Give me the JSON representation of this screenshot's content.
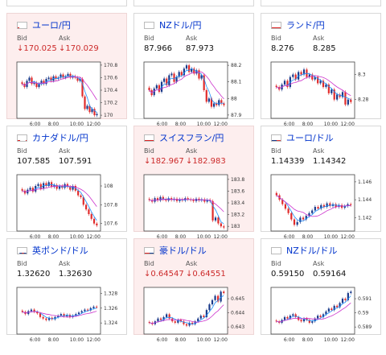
{
  "cards": [
    {
      "id": "eurjpy",
      "flag": "eu",
      "title": "ユーロ/円",
      "bid_label": "Bid",
      "ask_label": "Ask",
      "bid": "170.025",
      "ask": "170.029",
      "bid_down": true,
      "ask_down": true,
      "down": true,
      "chart_data": {
        "type": "candlestick",
        "x_ticks": [
          "6:00",
          "8:00",
          "10:00",
          "12:00"
        ],
        "y_ticks": [
          "170.8",
          "170.6",
          "170.4",
          "170.2",
          "170"
        ],
        "ylim": [
          169.95,
          170.85
        ],
        "close": [
          170.5,
          170.45,
          170.55,
          170.6,
          170.5,
          170.52,
          170.45,
          170.5,
          170.55,
          170.5,
          170.58,
          170.6,
          170.55,
          170.62,
          170.58,
          170.6,
          170.65,
          170.6,
          170.62,
          170.66,
          170.6,
          170.62,
          170.6,
          170.55,
          170.58,
          170.3,
          170.1,
          170.15,
          170.05,
          170.1,
          170.0,
          170.02
        ]
      }
    },
    {
      "id": "nzdjpy",
      "flag": "nz",
      "title": "NZドル/円",
      "bid_label": "Bid",
      "ask_label": "Ask",
      "bid": "87.966",
      "ask": "87.973",
      "bid_down": false,
      "ask_down": false,
      "down": false,
      "chart_data": {
        "type": "candlestick",
        "x_ticks": [
          "6:00",
          "8:00",
          "10:00",
          "12:00"
        ],
        "y_ticks": [
          "88.2",
          "88.1",
          "88",
          "87.9"
        ],
        "ylim": [
          87.88,
          88.22
        ],
        "close": [
          88.05,
          88.02,
          88.06,
          88.08,
          88.04,
          88.1,
          88.12,
          88.08,
          88.14,
          88.15,
          88.1,
          88.13,
          88.16,
          88.14,
          88.18,
          88.2,
          88.16,
          88.18,
          88.15,
          88.17,
          88.12,
          88.14,
          88.05,
          87.98,
          88.0,
          87.95,
          87.97,
          87.96,
          87.99,
          87.97,
          87.96
        ]
      }
    },
    {
      "id": "zarjpy",
      "flag": "za",
      "title": "ランド/円",
      "bid_label": "Bid",
      "ask_label": "Ask",
      "bid": "8.276",
      "ask": "8.285",
      "bid_down": false,
      "ask_down": false,
      "down": false,
      "chart_data": {
        "type": "candlestick",
        "x_ticks": [
          "6:00",
          "8:00",
          "10:00",
          "12:00"
        ],
        "y_ticks": [
          "8.3",
          "8.28"
        ],
        "ylim": [
          8.265,
          8.31
        ],
        "close": [
          8.29,
          8.288,
          8.292,
          8.295,
          8.29,
          8.298,
          8.3,
          8.296,
          8.302,
          8.3,
          8.304,
          8.298,
          8.3,
          8.296,
          8.298,
          8.293,
          8.295,
          8.29,
          8.292,
          8.285,
          8.288,
          8.28,
          8.284,
          8.282,
          8.286,
          8.276,
          8.28,
          8.278
        ]
      }
    },
    {
      "id": "cadjpy",
      "flag": "ca",
      "title": "カナダドル/円",
      "bid_label": "Bid",
      "ask_label": "Ask",
      "bid": "107.585",
      "ask": "107.591",
      "bid_down": false,
      "ask_down": false,
      "down": false,
      "chart_data": {
        "type": "candlestick",
        "x_ticks": [
          "6:00",
          "8:00",
          "10:00",
          "12:00"
        ],
        "y_ticks": [
          "108",
          "107.8",
          "107.6"
        ],
        "ylim": [
          107.52,
          108.12
        ],
        "close": [
          107.95,
          107.92,
          107.96,
          107.98,
          107.94,
          108.0,
          108.02,
          107.97,
          108.03,
          108.0,
          108.04,
          107.99,
          108.01,
          107.97,
          108.0,
          107.98,
          108.02,
          107.99,
          107.96,
          108.0,
          107.95,
          107.9,
          107.88,
          107.8,
          107.75,
          107.7,
          107.65,
          107.6,
          107.58
        ]
      }
    },
    {
      "id": "chfjpy",
      "flag": "ch",
      "title": "スイスフラン/円",
      "bid_label": "Bid",
      "ask_label": "Ask",
      "bid": "182.967",
      "ask": "182.983",
      "bid_down": true,
      "ask_down": true,
      "down": true,
      "chart_data": {
        "type": "candlestick",
        "x_ticks": [
          "6:00",
          "8:00",
          "10:00",
          "12:00"
        ],
        "y_ticks": [
          "183.8",
          "183.6",
          "183.4",
          "183.2",
          "183"
        ],
        "ylim": [
          182.92,
          183.88
        ],
        "close": [
          183.45,
          183.42,
          183.48,
          183.44,
          183.5,
          183.46,
          183.44,
          183.48,
          183.45,
          183.47,
          183.43,
          183.46,
          183.44,
          183.48,
          183.46,
          183.45,
          183.43,
          183.47,
          183.44,
          183.46,
          183.42,
          183.45,
          183.43,
          183.1,
          183.15,
          183.05,
          183.0,
          182.98
        ]
      }
    },
    {
      "id": "eurusd",
      "flag": "us",
      "title": "ユーロ/ドル",
      "bid_label": "Bid",
      "ask_label": "Ask",
      "bid": "1.14339",
      "ask": "1.14342",
      "bid_down": false,
      "ask_down": false,
      "down": false,
      "chart_data": {
        "type": "candlestick",
        "x_ticks": [
          "6:00",
          "8:00",
          "10:00",
          "12:00"
        ],
        "y_ticks": [
          "1.146",
          "1.144",
          "1.142"
        ],
        "ylim": [
          1.1405,
          1.1468
        ],
        "close": [
          1.1445,
          1.144,
          1.1435,
          1.143,
          1.1425,
          1.1418,
          1.1412,
          1.1415,
          1.142,
          1.1418,
          1.1422,
          1.1425,
          1.1428,
          1.1432,
          1.143,
          1.1434,
          1.1432,
          1.1436,
          1.1433,
          1.1435,
          1.1432,
          1.1434,
          1.1431,
          1.1433,
          1.1435,
          1.1434
        ]
      }
    },
    {
      "id": "gbpusd",
      "flag": "gb",
      "title": "英ポンド/ドル",
      "bid_label": "Bid",
      "ask_label": "Ask",
      "bid": "1.32620",
      "ask": "1.32630",
      "bid_down": false,
      "ask_down": false,
      "down": false,
      "chart_data": {
        "type": "candlestick",
        "x_ticks": [
          "6:00",
          "8:00",
          "10:00",
          "12:00"
        ],
        "y_ticks": [
          "1.328",
          "1.326",
          "1.324"
        ],
        "ylim": [
          1.3225,
          1.3288
        ],
        "close": [
          1.3255,
          1.3252,
          1.3256,
          1.3258,
          1.3255,
          1.3253,
          1.3248,
          1.3246,
          1.3244,
          1.3247,
          1.3245,
          1.3248,
          1.325,
          1.3252,
          1.3249,
          1.3251,
          1.3248,
          1.325,
          1.3252,
          1.3254,
          1.3256,
          1.3258,
          1.3257,
          1.326,
          1.3262,
          1.3261
        ]
      }
    },
    {
      "id": "audusd",
      "flag": "au",
      "title": "豪ドル/ドル",
      "bid_label": "Bid",
      "ask_label": "Ask",
      "bid": "0.64547",
      "ask": "0.64551",
      "bid_down": true,
      "ask_down": true,
      "down": true,
      "chart_data": {
        "type": "candlestick",
        "x_ticks": [
          "6:00",
          "8:00",
          "10:00",
          "12:00"
        ],
        "y_ticks": [
          "0.645",
          "0.644",
          "0.643"
        ],
        "ylim": [
          0.6425,
          0.6458
        ],
        "close": [
          0.6433,
          0.6432,
          0.6434,
          0.6436,
          0.6435,
          0.6437,
          0.6439,
          0.6436,
          0.6434,
          0.6433,
          0.6435,
          0.6434,
          0.6432,
          0.6431,
          0.6433,
          0.6432,
          0.6434,
          0.6436,
          0.6438,
          0.6437,
          0.6442,
          0.6446,
          0.6449,
          0.6452,
          0.6448,
          0.6455,
          0.6454
        ]
      }
    },
    {
      "id": "nzdusd",
      "flag": "nz",
      "title": "NZドル/ドル",
      "bid_label": "Bid",
      "ask_label": "Ask",
      "bid": "0.59150",
      "ask": "0.59164",
      "bid_down": false,
      "ask_down": false,
      "down": false,
      "chart_data": {
        "type": "candlestick",
        "x_ticks": [
          "6:00",
          "8:00",
          "10:00",
          "12:00"
        ],
        "y_ticks": [
          "0.591",
          "0.59",
          "0.589"
        ],
        "ylim": [
          0.5885,
          0.5918
        ],
        "close": [
          0.5894,
          0.5893,
          0.5895,
          0.5897,
          0.5896,
          0.5898,
          0.5899,
          0.5897,
          0.5895,
          0.5894,
          0.5896,
          0.5895,
          0.5893,
          0.5894,
          0.5896,
          0.5898,
          0.5897,
          0.5899,
          0.5901,
          0.5903,
          0.5902,
          0.5905,
          0.5904,
          0.5907,
          0.591,
          0.5909,
          0.5914,
          0.5915
        ]
      }
    }
  ],
  "colors": {
    "up": "#1a3a8a",
    "down": "#e02b2b",
    "ma1": "#1e90ff",
    "ma2": "#cc33cc",
    "title": "#0033cc",
    "down_text": "#cc2a2a"
  }
}
